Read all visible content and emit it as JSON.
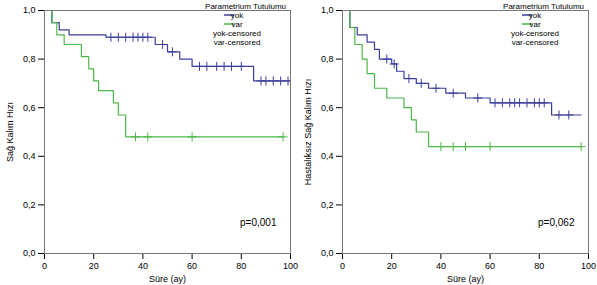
{
  "chart_data": [
    {
      "type": "line",
      "x_label": "Süre (ay)",
      "y_label": "Sağ Kalım Hızı",
      "legend_title": "Parametrium Tutulumu",
      "legend": "top-right",
      "annotation": "p=0,001",
      "xlim": [
        0,
        100
      ],
      "xticks": [
        0,
        20,
        40,
        60,
        80,
        100
      ],
      "ylim": [
        0,
        1
      ],
      "yticks": [
        {
          "value": 0,
          "label": "0,0"
        },
        {
          "value": 0.2,
          "label": "0,2"
        },
        {
          "value": 0.4,
          "label": "0,4"
        },
        {
          "value": 0.6,
          "label": "0,6"
        },
        {
          "value": 0.8,
          "label": "0,8"
        },
        {
          "value": 1,
          "label": "1,0"
        }
      ],
      "series": [
        {
          "name": "yok",
          "color": "#3a3f9c",
          "type": "line",
          "line_style": "step",
          "x": [
            0,
            3,
            6,
            10,
            25,
            45,
            50,
            55,
            60,
            85,
            100
          ],
          "values": [
            1,
            0.95,
            0.92,
            0.9,
            0.89,
            0.86,
            0.83,
            0.8,
            0.77,
            0.71,
            0.71
          ]
        },
        {
          "name": "var",
          "color": "#4cb848",
          "type": "line",
          "line_style": "step",
          "x": [
            0,
            3,
            5,
            8,
            15,
            18,
            20,
            22,
            28,
            30,
            33,
            97
          ],
          "values": [
            1,
            0.95,
            0.9,
            0.86,
            0.81,
            0.76,
            0.71,
            0.67,
            0.62,
            0.57,
            0.48,
            0.48
          ]
        },
        {
          "name": "yok-censored",
          "color": "#3a3f9c",
          "type": "scatter",
          "marker": "plus",
          "x": [
            27,
            30,
            33,
            36,
            38,
            40,
            42,
            48,
            52,
            63,
            66,
            70,
            73,
            76,
            80,
            88,
            90,
            93,
            96,
            99
          ],
          "values": [
            0.89,
            0.89,
            0.89,
            0.89,
            0.89,
            0.89,
            0.89,
            0.86,
            0.83,
            0.77,
            0.77,
            0.77,
            0.77,
            0.77,
            0.77,
            0.71,
            0.71,
            0.71,
            0.71,
            0.71
          ]
        },
        {
          "name": "var-censored",
          "color": "#4cb848",
          "type": "scatter",
          "marker": "plus",
          "x": [
            37,
            42,
            60,
            97
          ],
          "values": [
            0.48,
            0.48,
            0.48,
            0.48
          ]
        }
      ]
    },
    {
      "type": "line",
      "x_label": "Süre (ay)",
      "y_label": "Hastalıksız Sağ Kalım Hızı",
      "legend_title": "Parametrium Tutulumu",
      "legend": "top-right",
      "annotation": "p=0,062",
      "xlim": [
        0,
        100
      ],
      "xticks": [
        0,
        20,
        40,
        60,
        80,
        100
      ],
      "ylim": [
        0,
        1
      ],
      "yticks": [
        {
          "value": 0,
          "label": "0,0"
        },
        {
          "value": 0.2,
          "label": "0,2"
        },
        {
          "value": 0.4,
          "label": "0,4"
        },
        {
          "value": 0.6,
          "label": "0,6"
        },
        {
          "value": 0.8,
          "label": "0,8"
        },
        {
          "value": 1,
          "label": "1,0"
        }
      ],
      "series": [
        {
          "name": "yok",
          "color": "#3a3f9c",
          "type": "line",
          "line_style": "step",
          "x": [
            0,
            3,
            6,
            10,
            13,
            15,
            20,
            22,
            25,
            30,
            35,
            42,
            50,
            60,
            85,
            97
          ],
          "values": [
            1,
            0.93,
            0.9,
            0.87,
            0.84,
            0.8,
            0.78,
            0.75,
            0.72,
            0.7,
            0.68,
            0.66,
            0.64,
            0.62,
            0.57,
            0.57
          ]
        },
        {
          "name": "var",
          "color": "#4cb848",
          "type": "line",
          "line_style": "step",
          "x": [
            0,
            3,
            5,
            8,
            10,
            13,
            18,
            25,
            28,
            30,
            35,
            97
          ],
          "values": [
            1,
            0.93,
            0.86,
            0.8,
            0.74,
            0.68,
            0.64,
            0.6,
            0.55,
            0.5,
            0.44,
            0.44
          ]
        },
        {
          "name": "yok-censored",
          "color": "#3a3f9c",
          "type": "scatter",
          "marker": "plus",
          "x": [
            18,
            21,
            27,
            32,
            38,
            45,
            55,
            62,
            65,
            68,
            70,
            72,
            75,
            78,
            80,
            82,
            88,
            92
          ],
          "values": [
            0.8,
            0.78,
            0.72,
            0.7,
            0.68,
            0.66,
            0.64,
            0.62,
            0.62,
            0.62,
            0.62,
            0.62,
            0.62,
            0.62,
            0.62,
            0.62,
            0.57,
            0.57
          ]
        },
        {
          "name": "var-censored",
          "color": "#4cb848",
          "type": "scatter",
          "marker": "plus",
          "x": [
            40,
            45,
            50,
            60,
            97
          ],
          "values": [
            0.44,
            0.44,
            0.44,
            0.44,
            0.44
          ]
        }
      ]
    }
  ]
}
